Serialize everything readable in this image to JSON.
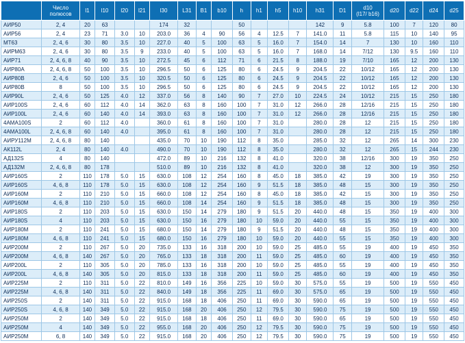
{
  "table": {
    "headers": [
      "",
      "Число\nполюсов",
      "l1",
      "l10",
      "l20",
      "l21",
      "l30",
      "L31",
      "B1",
      "b10",
      "h",
      "h1",
      "h5",
      "h10",
      "h31",
      "D1",
      "d10\n(l17/ b16)",
      "d20",
      "d22",
      "d24",
      "d25"
    ],
    "rows": [
      [
        "АИР50",
        "2, 4",
        "20",
        "63",
        "",
        "",
        "174",
        "32",
        "",
        "",
        "50",
        "",
        "",
        "",
        "142",
        "9",
        "5.8",
        "100",
        "7",
        "120",
        "80"
      ],
      [
        "АИР56",
        "2, 4",
        "23",
        "71",
        "3.0",
        "10",
        "203.0",
        "36",
        "4",
        "90",
        "56",
        "4",
        "12.5",
        "7",
        "141.0",
        "11",
        "5.8",
        "115",
        "10",
        "140",
        "95"
      ],
      [
        "МТ63",
        "2, 4, 6",
        "30",
        "80",
        "3.5",
        "10",
        "227.0",
        "40",
        "5",
        "100",
        "63",
        "5",
        "16.0",
        "7",
        "154.0",
        "14",
        "7",
        "130",
        "10",
        "160",
        "110"
      ],
      [
        "АИРМ63",
        "2, 4, 6",
        "30",
        "80",
        "3.5",
        "9",
        "233.0",
        "40",
        "5",
        "100",
        "63",
        "5",
        "16.0",
        "7",
        "168.0",
        "14",
        "7/12",
        "130",
        "9.5",
        "160",
        "110"
      ],
      [
        "АИР71",
        "2, 4, 6, 8",
        "40",
        "90",
        "3.5",
        "10",
        "272.5",
        "45",
        "6",
        "112",
        "71",
        "6",
        "21.5",
        "8",
        "188.0",
        "19",
        "7/10",
        "165",
        "12",
        "200",
        "130"
      ],
      [
        "АИР80А",
        "2, 4, 6, 8",
        "50",
        "100",
        "3.5",
        "10",
        "296.5",
        "50",
        "6",
        "125",
        "80",
        "6",
        "24.5",
        "9",
        "204.5",
        "22",
        "10/12",
        "165",
        "12",
        "200",
        "130"
      ],
      [
        "АИР80В",
        "2, 4, 6",
        "50",
        "100",
        "3.5",
        "10",
        "320.5",
        "50",
        "6",
        "125",
        "80",
        "6",
        "24.5",
        "9",
        "204.5",
        "22",
        "10/12",
        "165",
        "12",
        "200",
        "130"
      ],
      [
        "АИР80В",
        "8",
        "50",
        "100",
        "3.5",
        "10",
        "296.5",
        "50",
        "6",
        "125",
        "80",
        "6",
        "24.5",
        "9",
        "204.5",
        "22",
        "10/12",
        "165",
        "12",
        "200",
        "130"
      ],
      [
        "АИР90L",
        "2, 4, 6",
        "50",
        "125",
        "4.0",
        "12",
        "337.0",
        "56",
        "8",
        "140",
        "90",
        "7",
        "27.0",
        "10",
        "224.5",
        "24",
        "10/12",
        "215",
        "15",
        "250",
        "180"
      ],
      [
        "АИР100S",
        "2, 4, 6",
        "60",
        "112",
        "4.0",
        "14",
        "362.0",
        "63",
        "8",
        "160",
        "100",
        "7",
        "31.0",
        "12",
        "266.0",
        "28",
        "12/16",
        "215",
        "15",
        "250",
        "180"
      ],
      [
        "АИР100L",
        "2, 4, 6",
        "60",
        "140",
        "4.0",
        "14",
        "393.0",
        "63",
        "8",
        "160",
        "100",
        "7",
        "31.0",
        "12",
        "266.0",
        "28",
        "12/16",
        "215",
        "15",
        "250",
        "180"
      ],
      [
        "4АМА100S",
        "2",
        "60",
        "112",
        "4.0",
        "",
        "360.0",
        "61",
        "8",
        "160",
        "100",
        "7",
        "31.0",
        "",
        "280.0",
        "28",
        "12",
        "215",
        "15",
        "250",
        "180"
      ],
      [
        "4АМА100L",
        "2, 4, 6, 8",
        "60",
        "140",
        "4.0",
        "",
        "395.0",
        "61",
        "8",
        "160",
        "100",
        "7",
        "31.0",
        "",
        "280.0",
        "28",
        "12",
        "215",
        "15",
        "250",
        "180"
      ],
      [
        "АИРУ112М",
        "2, 4, 6, 8",
        "80",
        "140",
        "",
        "",
        "435.0",
        "70",
        "10",
        "190",
        "112",
        "8",
        "35.0",
        "",
        "285.0",
        "32",
        "12",
        "265",
        "14",
        "300",
        "230"
      ],
      [
        "АК112L",
        "2, 4",
        "80",
        "140",
        "4.0",
        "",
        "490.0",
        "70",
        "10",
        "190",
        "112",
        "8",
        "35.0",
        "",
        "280.0",
        "32",
        "12",
        "265",
        "15",
        "244",
        "230"
      ],
      [
        "АД132S",
        "4",
        "80",
        "140",
        "",
        "",
        "472.0",
        "89",
        "10",
        "216",
        "132",
        "8",
        "41.0",
        "",
        "320.0",
        "38",
        "12/16",
        "300",
        "19",
        "350",
        "250"
      ],
      [
        "АД132М",
        "2, 4, 6, 8",
        "80",
        "178",
        "",
        "",
        "510.0",
        "89",
        "10",
        "216",
        "132",
        "8",
        "41.0",
        "",
        "320.0",
        "38",
        "12",
        "300",
        "19",
        "350",
        "250"
      ],
      [
        "АИР160S",
        "2",
        "110",
        "178",
        "5.0",
        "15",
        "630.0",
        "108",
        "12",
        "254",
        "160",
        "8",
        "45.0",
        "18",
        "385.0",
        "42",
        "19",
        "300",
        "19",
        "350",
        "250"
      ],
      [
        "АИР160S",
        "4, 6, 8",
        "110",
        "178",
        "5.0",
        "15",
        "630.0",
        "108",
        "12",
        "254",
        "160",
        "9",
        "51.5",
        "18",
        "385.0",
        "48",
        "15",
        "300",
        "19",
        "350",
        "250"
      ],
      [
        "АИР160М",
        "2",
        "110",
        "210",
        "5.0",
        "15",
        "660.0",
        "108",
        "12",
        "254",
        "160",
        "8",
        "45.0",
        "18",
        "385.0",
        "42",
        "15",
        "300",
        "19",
        "350",
        "250"
      ],
      [
        "АИР160М",
        "4, 6, 8",
        "110",
        "210",
        "5.0",
        "15",
        "660.0",
        "108",
        "14",
        "254",
        "160",
        "9",
        "51.5",
        "18",
        "385.0",
        "48",
        "15",
        "300",
        "19",
        "350",
        "250"
      ],
      [
        "АИР180S",
        "2",
        "110",
        "203",
        "5.0",
        "15",
        "630.0",
        "150",
        "14",
        "279",
        "180",
        "9",
        "51.5",
        "20",
        "440.0",
        "48",
        "15",
        "350",
        "19",
        "400",
        "300"
      ],
      [
        "АИР180S",
        "4",
        "110",
        "203",
        "5.0",
        "15",
        "630.0",
        "150",
        "16",
        "279",
        "180",
        "10",
        "59.0",
        "20",
        "440.0",
        "55",
        "15",
        "350",
        "19",
        "400",
        "300"
      ],
      [
        "АИР180М",
        "2",
        "110",
        "241",
        "5.0",
        "15",
        "680.0",
        "150",
        "14",
        "279",
        "180",
        "9",
        "51.5",
        "20",
        "440.0",
        "48",
        "15",
        "350",
        "19",
        "400",
        "300"
      ],
      [
        "АИР180М",
        "4, 6, 8",
        "110",
        "241",
        "5.0",
        "15",
        "680.0",
        "150",
        "16",
        "279",
        "180",
        "10",
        "59.0",
        "20",
        "440.0",
        "55",
        "15",
        "350",
        "19",
        "400",
        "300"
      ],
      [
        "АИР200М",
        "2",
        "110",
        "267",
        "5.0",
        "20",
        "735.0",
        "133",
        "16",
        "318",
        "200",
        "10",
        "59.0",
        "25",
        "485.0",
        "55",
        "19",
        "400",
        "19",
        "450",
        "350"
      ],
      [
        "АИР200М",
        "4, 6, 8",
        "140",
        "267",
        "5.0",
        "20",
        "765.0",
        "133",
        "18",
        "318",
        "200",
        "11",
        "59.0",
        "25",
        "485.0",
        "60",
        "19",
        "400",
        "19",
        "450",
        "350"
      ],
      [
        "АИР200L",
        "2",
        "110",
        "305",
        "5.0",
        "20",
        "785.0",
        "133",
        "16",
        "318",
        "200",
        "10",
        "59.0",
        "25",
        "485.0",
        "55",
        "19",
        "400",
        "19",
        "450",
        "350"
      ],
      [
        "АИР200L",
        "4, 6, 8",
        "140",
        "305",
        "5.0",
        "20",
        "815.0",
        "133",
        "18",
        "318",
        "200",
        "11",
        "59.0",
        "25",
        "485.0",
        "60",
        "19",
        "400",
        "19",
        "450",
        "350"
      ],
      [
        "АИР225М",
        "2",
        "110",
        "311",
        "5.0",
        "22",
        "810.0",
        "149",
        "16",
        "356",
        "225",
        "10",
        "59.0",
        "30",
        "575.0",
        "55",
        "19",
        "500",
        "19",
        "550",
        "450"
      ],
      [
        "АИР225М",
        "4, 6, 8",
        "140",
        "311",
        "5.0",
        "22",
        "840.0",
        "149",
        "18",
        "356",
        "225",
        "11",
        "69.0",
        "30",
        "575.0",
        "65",
        "19",
        "500",
        "19",
        "550",
        "450"
      ],
      [
        "АИР250S",
        "2",
        "140",
        "311",
        "5.0",
        "22",
        "915.0",
        "168",
        "18",
        "406",
        "250",
        "11",
        "69.0",
        "30",
        "590.0",
        "65",
        "19",
        "500",
        "19",
        "550",
        "450"
      ],
      [
        "АИР250S",
        "4, 6, 8",
        "140",
        "349",
        "5.0",
        "22",
        "915.0",
        "168",
        "20",
        "406",
        "250",
        "12",
        "79.5",
        "30",
        "590.0",
        "75",
        "19",
        "500",
        "19",
        "550",
        "450"
      ],
      [
        "АИР250М",
        "2",
        "140",
        "349",
        "5.0",
        "22",
        "915.0",
        "168",
        "18",
        "406",
        "250",
        "11",
        "69.0",
        "30",
        "590.0",
        "65",
        "19",
        "500",
        "19",
        "550",
        "450"
      ],
      [
        "АИР250М",
        "4",
        "140",
        "349",
        "5.0",
        "22",
        "955.0",
        "168",
        "20",
        "406",
        "250",
        "12",
        "79.5",
        "30",
        "590.0",
        "75",
        "19",
        "500",
        "19",
        "550",
        "450"
      ],
      [
        "АИР250М",
        "6, 8",
        "140",
        "349",
        "5.0",
        "22",
        "915.0",
        "168",
        "20",
        "406",
        "250",
        "12",
        "79.5",
        "30",
        "590.0",
        "75",
        "19",
        "500",
        "19",
        "550",
        "450"
      ]
    ]
  },
  "colors": {
    "header_bg": "#0e6fb4",
    "header_text": "#ffffff",
    "row_odd": "#dcedf9",
    "row_even": "#ffffff",
    "cell_text": "#0a2a55",
    "grid": "#9cc6e6"
  }
}
